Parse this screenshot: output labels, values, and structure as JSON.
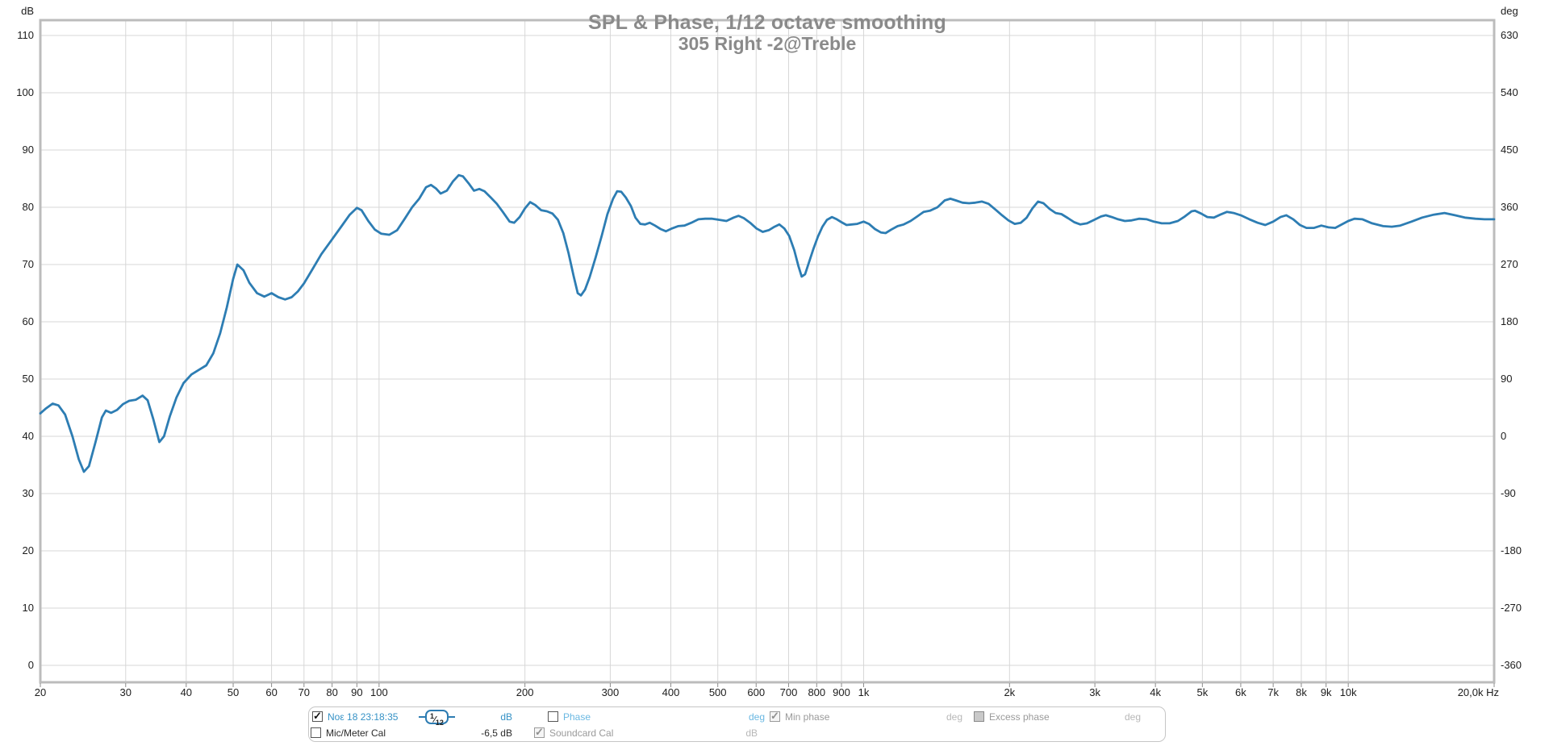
{
  "colors": {
    "trace": "#2d7db3",
    "grid": "#d7d7d7",
    "frame": "#bcbcbc",
    "tick_marks": "#8c8c8c",
    "axis_text": "#1c1c1c",
    "title_text": "#8a8a8a",
    "legend_active_blue": "#3692c6",
    "legend_light_blue": "#6ab8e2",
    "legend_gray": "#9a9a9a",
    "legend_light_gray": "#b8b8b8"
  },
  "axes": {
    "left_unit": "dB",
    "right_unit": "deg",
    "x_end_label": "20,0k Hz"
  },
  "chart_data": {
    "type": "line",
    "title": "SPL & Phase, 1/12 octave smoothing",
    "subtitle": "305 Right -2@Treble",
    "grid": true,
    "legend_position": "bottom",
    "x_axis": {
      "label": "Hz",
      "scale": "log",
      "min": 20,
      "max": 20000,
      "ticks": [
        {
          "f": 20,
          "label": "20"
        },
        {
          "f": 30,
          "label": "30"
        },
        {
          "f": 40,
          "label": "40"
        },
        {
          "f": 50,
          "label": "50"
        },
        {
          "f": 60,
          "label": "60"
        },
        {
          "f": 70,
          "label": "70"
        },
        {
          "f": 80,
          "label": "80"
        },
        {
          "f": 90,
          "label": "90"
        },
        {
          "f": 100,
          "label": "100"
        },
        {
          "f": 200,
          "label": "200"
        },
        {
          "f": 300,
          "label": "300"
        },
        {
          "f": 400,
          "label": "400"
        },
        {
          "f": 500,
          "label": "500"
        },
        {
          "f": 600,
          "label": "600"
        },
        {
          "f": 700,
          "label": "700"
        },
        {
          "f": 800,
          "label": "800"
        },
        {
          "f": 900,
          "label": "900"
        },
        {
          "f": 1000,
          "label": "1k"
        },
        {
          "f": 2000,
          "label": "2k"
        },
        {
          "f": 3000,
          "label": "3k"
        },
        {
          "f": 4000,
          "label": "4k"
        },
        {
          "f": 5000,
          "label": "5k"
        },
        {
          "f": 6000,
          "label": "6k"
        },
        {
          "f": 7000,
          "label": "7k"
        },
        {
          "f": 8000,
          "label": "8k"
        },
        {
          "f": 9000,
          "label": "9k"
        },
        {
          "f": 10000,
          "label": "10k"
        },
        {
          "f": 20000,
          "label": "20,0k Hz"
        }
      ]
    },
    "y_axis_left": {
      "label": "dB",
      "min": 0,
      "max": 110,
      "grid_step": 10,
      "ticks": [
        0,
        10,
        20,
        30,
        40,
        50,
        60,
        70,
        80,
        90,
        100,
        110
      ]
    },
    "y_axis_right": {
      "label": "deg",
      "min": -360,
      "max": 630,
      "grid_step": 90,
      "ticks": [
        -360,
        -270,
        -180,
        -90,
        0,
        90,
        180,
        270,
        360,
        450,
        540,
        630
      ]
    },
    "series": [
      {
        "name": "Νοε 18 23:18:35",
        "unit": "dB",
        "color": "#2d7db3",
        "points": [
          [
            20,
            44.0
          ],
          [
            20.5,
            44.8
          ],
          [
            21.2,
            45.7
          ],
          [
            21.8,
            45.4
          ],
          [
            22.5,
            43.8
          ],
          [
            23.3,
            40.0
          ],
          [
            24.0,
            36.0
          ],
          [
            24.6,
            33.8
          ],
          [
            25.2,
            34.8
          ],
          [
            26.0,
            39.0
          ],
          [
            26.8,
            43.3
          ],
          [
            27.3,
            44.5
          ],
          [
            28.0,
            44.1
          ],
          [
            28.8,
            44.6
          ],
          [
            29.6,
            45.6
          ],
          [
            30.5,
            46.2
          ],
          [
            31.5,
            46.4
          ],
          [
            32.5,
            47.1
          ],
          [
            33.3,
            46.3
          ],
          [
            34.2,
            43.0
          ],
          [
            35.2,
            39.0
          ],
          [
            36.0,
            40.0
          ],
          [
            37.0,
            43.5
          ],
          [
            38.2,
            46.8
          ],
          [
            39.5,
            49.3
          ],
          [
            41.0,
            50.8
          ],
          [
            42.5,
            51.6
          ],
          [
            44.0,
            52.4
          ],
          [
            45.5,
            54.5
          ],
          [
            47.0,
            58.0
          ],
          [
            48.5,
            62.5
          ],
          [
            50.0,
            67.5
          ],
          [
            51.0,
            70.0
          ],
          [
            52.5,
            69.0
          ],
          [
            54.0,
            66.8
          ],
          [
            56.0,
            65.0
          ],
          [
            58.0,
            64.4
          ],
          [
            60.0,
            65.0
          ],
          [
            62.0,
            64.3
          ],
          [
            64.0,
            63.9
          ],
          [
            66.0,
            64.3
          ],
          [
            68.0,
            65.3
          ],
          [
            70.0,
            66.7
          ],
          [
            73.0,
            69.3
          ],
          [
            76.0,
            71.8
          ],
          [
            80.0,
            74.4
          ],
          [
            84.0,
            76.9
          ],
          [
            87.0,
            78.7
          ],
          [
            90.0,
            79.9
          ],
          [
            92.0,
            79.5
          ],
          [
            95.0,
            77.6
          ],
          [
            98.0,
            76.1
          ],
          [
            101.0,
            75.4
          ],
          [
            105.0,
            75.2
          ],
          [
            109.0,
            76.0
          ],
          [
            113.0,
            78.0
          ],
          [
            117.0,
            80.0
          ],
          [
            121.0,
            81.5
          ],
          [
            125.0,
            83.5
          ],
          [
            128.0,
            83.9
          ],
          [
            131.0,
            83.3
          ],
          [
            134.0,
            82.4
          ],
          [
            138.0,
            82.9
          ],
          [
            142.0,
            84.5
          ],
          [
            146.0,
            85.6
          ],
          [
            149.0,
            85.4
          ],
          [
            153.0,
            84.2
          ],
          [
            157.0,
            82.9
          ],
          [
            161.0,
            83.2
          ],
          [
            165.0,
            82.8
          ],
          [
            170.0,
            81.7
          ],
          [
            175.0,
            80.6
          ],
          [
            180.0,
            79.2
          ],
          [
            186.0,
            77.5
          ],
          [
            190.0,
            77.3
          ],
          [
            195.0,
            78.3
          ],
          [
            200.0,
            79.8
          ],
          [
            205.0,
            80.9
          ],
          [
            210.0,
            80.4
          ],
          [
            216.0,
            79.5
          ],
          [
            222.0,
            79.3
          ],
          [
            228.0,
            78.9
          ],
          [
            234.0,
            77.8
          ],
          [
            240.0,
            75.5
          ],
          [
            246.0,
            72.0
          ],
          [
            252.0,
            68.0
          ],
          [
            257.0,
            65.0
          ],
          [
            261.0,
            64.6
          ],
          [
            266.0,
            65.6
          ],
          [
            272.0,
            67.8
          ],
          [
            280.0,
            71.3
          ],
          [
            288.0,
            75.0
          ],
          [
            296.0,
            78.8
          ],
          [
            304.0,
            81.5
          ],
          [
            310.0,
            82.8
          ],
          [
            316.0,
            82.7
          ],
          [
            323.0,
            81.7
          ],
          [
            331.0,
            80.2
          ],
          [
            338.0,
            78.2
          ],
          [
            346.0,
            77.1
          ],
          [
            354.0,
            77.0
          ],
          [
            362.0,
            77.3
          ],
          [
            371.0,
            76.8
          ],
          [
            381.0,
            76.2
          ],
          [
            391.0,
            75.8
          ],
          [
            402.0,
            76.3
          ],
          [
            414.0,
            76.7
          ],
          [
            427.0,
            76.8
          ],
          [
            441.0,
            77.3
          ],
          [
            456.0,
            77.9
          ],
          [
            471.0,
            78.0
          ],
          [
            487.0,
            78.0
          ],
          [
            504.0,
            77.8
          ],
          [
            521.0,
            77.6
          ],
          [
            539.0,
            78.2
          ],
          [
            552.0,
            78.5
          ],
          [
            566.0,
            78.1
          ],
          [
            583.0,
            77.3
          ],
          [
            601.0,
            76.3
          ],
          [
            619.0,
            75.7
          ],
          [
            637.0,
            76.0
          ],
          [
            655.0,
            76.6
          ],
          [
            670.0,
            77.0
          ],
          [
            686.0,
            76.3
          ],
          [
            702.0,
            75.0
          ],
          [
            719.0,
            72.5
          ],
          [
            733.0,
            69.8
          ],
          [
            745.0,
            67.9
          ],
          [
            757.0,
            68.3
          ],
          [
            772.0,
            70.5
          ],
          [
            788.0,
            72.8
          ],
          [
            805.0,
            74.9
          ],
          [
            822.0,
            76.6
          ],
          [
            840.0,
            77.8
          ],
          [
            860.0,
            78.3
          ],
          [
            880.0,
            77.9
          ],
          [
            900.0,
            77.4
          ],
          [
            922.0,
            76.9
          ],
          [
            945.0,
            77.0
          ],
          [
            970.0,
            77.1
          ],
          [
            1000,
            77.5
          ],
          [
            1025,
            77.1
          ],
          [
            1055,
            76.2
          ],
          [
            1085,
            75.6
          ],
          [
            1110,
            75.5
          ],
          [
            1140,
            76.1
          ],
          [
            1175,
            76.7
          ],
          [
            1210,
            77.0
          ],
          [
            1250,
            77.6
          ],
          [
            1290,
            78.4
          ],
          [
            1330,
            79.2
          ],
          [
            1370,
            79.4
          ],
          [
            1420,
            80.0
          ],
          [
            1470,
            81.2
          ],
          [
            1510,
            81.5
          ],
          [
            1550,
            81.2
          ],
          [
            1600,
            80.8
          ],
          [
            1650,
            80.7
          ],
          [
            1700,
            80.8
          ],
          [
            1755,
            81.0
          ],
          [
            1810,
            80.6
          ],
          [
            1870,
            79.6
          ],
          [
            1930,
            78.6
          ],
          [
            1990,
            77.7
          ],
          [
            2050,
            77.1
          ],
          [
            2110,
            77.3
          ],
          [
            2170,
            78.2
          ],
          [
            2230,
            79.8
          ],
          [
            2290,
            81.0
          ],
          [
            2350,
            80.7
          ],
          [
            2420,
            79.7
          ],
          [
            2490,
            79.0
          ],
          [
            2560,
            78.8
          ],
          [
            2640,
            78.1
          ],
          [
            2720,
            77.4
          ],
          [
            2800,
            77.0
          ],
          [
            2890,
            77.2
          ],
          [
            2990,
            77.8
          ],
          [
            3090,
            78.4
          ],
          [
            3160,
            78.6
          ],
          [
            3250,
            78.3
          ],
          [
            3350,
            77.9
          ],
          [
            3460,
            77.6
          ],
          [
            3570,
            77.7
          ],
          [
            3700,
            78.0
          ],
          [
            3840,
            77.9
          ],
          [
            3970,
            77.5
          ],
          [
            4120,
            77.2
          ],
          [
            4280,
            77.2
          ],
          [
            4450,
            77.6
          ],
          [
            4600,
            78.4
          ],
          [
            4750,
            79.3
          ],
          [
            4830,
            79.4
          ],
          [
            4970,
            78.9
          ],
          [
            5120,
            78.3
          ],
          [
            5280,
            78.2
          ],
          [
            5440,
            78.7
          ],
          [
            5620,
            79.2
          ],
          [
            5800,
            79.0
          ],
          [
            6000,
            78.6
          ],
          [
            6250,
            77.9
          ],
          [
            6500,
            77.3
          ],
          [
            6740,
            76.9
          ],
          [
            7000,
            77.5
          ],
          [
            7250,
            78.3
          ],
          [
            7450,
            78.6
          ],
          [
            7700,
            77.9
          ],
          [
            7950,
            76.9
          ],
          [
            8200,
            76.4
          ],
          [
            8500,
            76.4
          ],
          [
            8800,
            76.8
          ],
          [
            9100,
            76.5
          ],
          [
            9400,
            76.4
          ],
          [
            9700,
            77.0
          ],
          [
            10000,
            77.6
          ],
          [
            10300,
            78.0
          ],
          [
            10700,
            77.9
          ],
          [
            11200,
            77.2
          ],
          [
            11800,
            76.7
          ],
          [
            12300,
            76.6
          ],
          [
            12800,
            76.8
          ],
          [
            13500,
            77.5
          ],
          [
            14200,
            78.2
          ],
          [
            15000,
            78.7
          ],
          [
            15800,
            79.0
          ],
          [
            16600,
            78.6
          ],
          [
            17400,
            78.2
          ],
          [
            18300,
            78.0
          ],
          [
            19100,
            77.9
          ],
          [
            20000,
            77.9
          ]
        ]
      }
    ]
  },
  "legend": {
    "rows": [
      [
        {
          "kind": "checkbox",
          "name": "measurement-nov-18-23-18-35",
          "checked": true,
          "disabled": false,
          "label": "Νοε 18 23:18:35",
          "variant": "active-blue"
        },
        {
          "kind": "smoothing",
          "name": "smoothing-1-12",
          "label": "1/12"
        },
        {
          "kind": "unit",
          "name": "measurement-unit-db",
          "label": "dB",
          "variant": "active-blue"
        },
        {
          "kind": "checkbox",
          "name": "phase",
          "checked": false,
          "disabled": false,
          "label": "Phase",
          "variant": "light-blue"
        },
        {
          "kind": "unit",
          "name": "phase-unit-deg",
          "label": "deg",
          "variant": "light-blue"
        },
        {
          "kind": "checkbox",
          "name": "min-phase",
          "checked": true,
          "disabled": true,
          "label": "Min phase",
          "variant": "gray"
        },
        {
          "kind": "unit",
          "name": "min-phase-unit-deg",
          "label": "deg",
          "variant": "light-gray"
        },
        {
          "kind": "checkbox",
          "name": "excess-phase",
          "checked": false,
          "disabled": true,
          "filled": true,
          "label": "Excess phase",
          "variant": "gray"
        },
        {
          "kind": "unit",
          "name": "excess-phase-unit-deg",
          "label": "deg",
          "variant": "light-gray"
        }
      ],
      [
        {
          "kind": "checkbox",
          "name": "mic-meter-cal",
          "checked": false,
          "disabled": false,
          "label": "Mic/Meter Cal",
          "variant": "dark"
        },
        {
          "kind": "value",
          "name": "mic-meter-cal-offset",
          "label": "-6,5 dB",
          "variant": "dark"
        },
        {
          "kind": "checkbox",
          "name": "soundcard-cal",
          "checked": true,
          "disabled": true,
          "label": "Soundcard Cal",
          "variant": "gray"
        },
        {
          "kind": "unit",
          "name": "soundcard-cal-unit-db",
          "label": "dB",
          "variant": "light-gray"
        }
      ]
    ]
  }
}
